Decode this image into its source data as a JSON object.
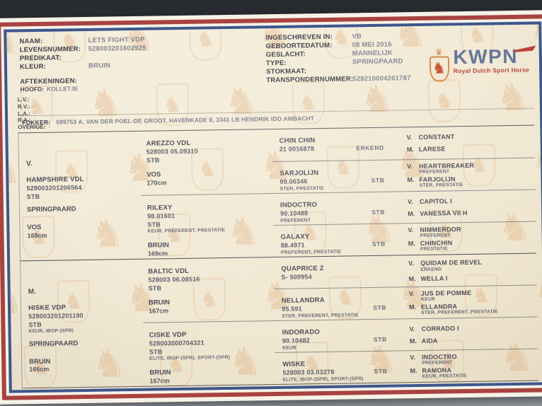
{
  "document": {
    "fields_left": [
      {
        "label": "NAAM:",
        "value": "LETS FIGHT VDP"
      },
      {
        "label": "LEVENSNUMMER:",
        "value": "528003201602925"
      },
      {
        "label": "PREDIKAAT:",
        "value": ""
      },
      {
        "label": "KLEUR:",
        "value": "BRUIN"
      }
    ],
    "markings_title": "AFTEKENINGEN:",
    "head_marking": {
      "label": "HOOFD:",
      "value": "KOLLETJE"
    },
    "markings": [
      {
        "label": "L.V.:",
        "value": "-"
      },
      {
        "label": "R.V.:",
        "value": "-"
      },
      {
        "label": "L.A.:",
        "value": "-"
      },
      {
        "label": "R.A.:",
        "value": "-"
      },
      {
        "label": "OVERIGE:",
        "value": "-"
      }
    ],
    "fields_right": [
      {
        "label": "INGESCHREVEN IN:",
        "value": "VB"
      },
      {
        "label": "GEBOORTEDATUM:",
        "value": "08 MEI 2016"
      },
      {
        "label": "GESLACHT:",
        "value": "MANNELIJK"
      },
      {
        "label": "TYPE:",
        "value": "SPRINGPAARD"
      },
      {
        "label": "STOKMAAT:",
        "value": ""
      },
      {
        "label": "TRANSPONDERNUMMER:",
        "value": "528210004261787"
      }
    ],
    "breeder": {
      "label": "FOKKER:",
      "value": "599753 A. VAN DER POEL-DE GROOT, HAVENKADE 8, 3341 LB HENDRIK IDO AMBACHT"
    }
  },
  "logo": {
    "acronym": "KWPN",
    "tagline": "Royal Dutch Sport Horse"
  },
  "icons": {
    "lion_watermark": "♞",
    "crown": "♛",
    "shield_lion": "♞"
  },
  "colors": {
    "frame_red": "#a84340",
    "frame_blue": "#3c578d",
    "paper": "#f2ead6",
    "logo_blue": "#66769c",
    "logo_red": "#b8423a",
    "logo_orange": "#d9884b",
    "watermark_orange": "#e2b285"
  },
  "pedigree": {
    "parents": [
      {
        "role": "V.",
        "name": "HAMPSHIRE VDL",
        "number": "528003201206564",
        "studbook": "STB",
        "predicates": "",
        "type": "SPRINGPAARD",
        "color": "VOS",
        "height": "169cm"
      },
      {
        "role": "M.",
        "name": "HISKE VDP",
        "number": "528003201201190",
        "studbook": "STB",
        "predicates": "KEUR, IBOP-(SPR)",
        "type": "SPRINGPAARD",
        "color": "BRUIN",
        "height": "166cm"
      }
    ],
    "grandparents": [
      {
        "name": "AREZZO VDL",
        "number": "528003 05.09310",
        "studbook": "STB",
        "predicates": "",
        "color": "VOS",
        "height": "170cm"
      },
      {
        "name": "RILEXY",
        "number": "98.01601",
        "studbook": "STB",
        "predicates": "KEUR, PREFERENT, PRESTATIE",
        "color": "BRUIN",
        "height": "169cm"
      },
      {
        "name": "BALTIC VDL",
        "number": "528003 06.08516",
        "studbook": "STB",
        "predicates": "",
        "color": "BRUIN",
        "height": "167cm"
      },
      {
        "name": "CISKE VDP",
        "number": "528003000704321",
        "studbook": "STB",
        "predicates": "ELITE, IBOP-(SPR), SPORT-(SPR)",
        "color": "BRUIN",
        "height": "167cm"
      }
    ],
    "great_grandparents": [
      {
        "name": "CHIN CHIN",
        "number": "21 0016878",
        "predicates": "",
        "status": "ERKEND"
      },
      {
        "name": "SARJOLIJN",
        "number": "99.06346",
        "predicates": "STER, PRESTATIE",
        "status": "STB"
      },
      {
        "name": "INDOCTRO",
        "number": "90.10488",
        "predicates": "PREFERENT",
        "status": "STB"
      },
      {
        "name": "GALAXY",
        "number": "88.4971",
        "predicates": "PREFERENT, PRESTATIE",
        "status": "STB"
      },
      {
        "name": "QUAPRICE Z",
        "number": "S- 509954",
        "predicates": "",
        "status": ""
      },
      {
        "name": "NELLANDRA",
        "number": "95.591",
        "predicates": "STER, PREFERENT, PRESTATIE",
        "status": "STB"
      },
      {
        "name": "INDORADO",
        "number": "90.10482",
        "predicates": "KEUR",
        "status": "STB"
      },
      {
        "name": "WISKE",
        "number": "528003 03.03278",
        "predicates": "ELITE, IBOP-(SPR), SPORT-(SPR)",
        "status": "STB"
      }
    ],
    "gg": [
      [
        {
          "role": "V.",
          "name": "CONSTANT",
          "predicates": ""
        },
        {
          "role": "M.",
          "name": "LARESE",
          "predicates": ""
        }
      ],
      [
        {
          "role": "V.",
          "name": "HEARTBREAKER",
          "predicates": "PREFERENT"
        },
        {
          "role": "M.",
          "name": "FARJOLIJN",
          "predicates": "STER, PRESTATIE"
        }
      ],
      [
        {
          "role": "V.",
          "name": "CAPITOL I",
          "predicates": ""
        },
        {
          "role": "M.",
          "name": "VANESSA VII H",
          "predicates": ""
        }
      ],
      [
        {
          "role": "V.",
          "name": "NIMMERDOR",
          "predicates": "PREFERENT"
        },
        {
          "role": "M.",
          "name": "CHINCHIN",
          "predicates": "PRESTATIE"
        }
      ],
      [
        {
          "role": "V.",
          "name": "QUIDAM DE REVEL",
          "predicates": "ERKEND"
        },
        {
          "role": "M.",
          "name": "WELLA I",
          "predicates": ""
        }
      ],
      [
        {
          "role": "V.",
          "name": "JUS DE POMME",
          "predicates": "KEUR"
        },
        {
          "role": "M.",
          "name": "ELLANDRA",
          "predicates": "STER, PREFERENT, PRESTATIE"
        }
      ],
      [
        {
          "role": "V.",
          "name": "CORRADO I",
          "predicates": ""
        },
        {
          "role": "M.",
          "name": "AIDA",
          "predicates": ""
        }
      ],
      [
        {
          "role": "V.",
          "name": "INDOCTRO",
          "predicates": "PREFERENT"
        },
        {
          "role": "M.",
          "name": "RAMONA",
          "predicates": "KEUR, PRESTATIE"
        }
      ]
    ]
  }
}
